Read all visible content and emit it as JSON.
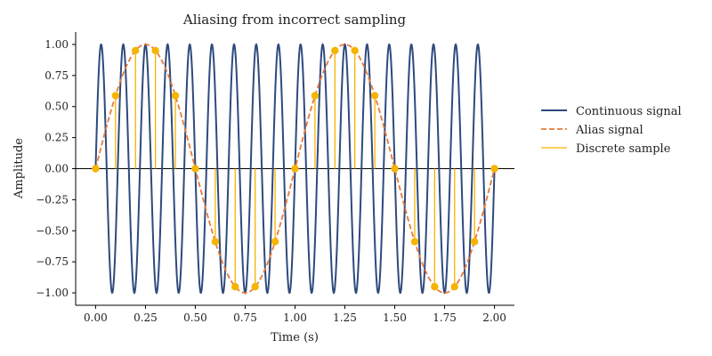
{
  "chart_data": {
    "type": "line",
    "title": "Aliasing from incorrect sampling",
    "xlabel": "Time (s)",
    "ylabel": "Amplitude",
    "xlim": [
      -0.1,
      2.1
    ],
    "ylim": [
      -1.1,
      1.1
    ],
    "xticks": [
      0.0,
      0.25,
      0.5,
      0.75,
      1.0,
      1.25,
      1.5,
      1.75,
      2.0
    ],
    "xtick_labels": [
      "0.00",
      "0.25",
      "0.50",
      "0.75",
      "1.00",
      "1.25",
      "1.50",
      "1.75",
      "2.00"
    ],
    "yticks": [
      -1.0,
      -0.75,
      -0.5,
      -0.25,
      0.0,
      0.25,
      0.5,
      0.75,
      1.0
    ],
    "ytick_labels": [
      "−1.00",
      "−0.75",
      "−0.50",
      "−0.25",
      "0.00",
      "0.25",
      "0.50",
      "0.75",
      "1.00"
    ],
    "grid": false,
    "legend_position": "right",
    "series": [
      {
        "name": "Continuous signal",
        "style": "solid",
        "color": "#2e4a7d",
        "frequency_hz": 9,
        "amplitude": 1
      },
      {
        "name": "Alias signal",
        "style": "dashed",
        "color": "#e8793a",
        "frequency_hz": 1,
        "amplitude": 1
      },
      {
        "name": "Discrete sample",
        "style": "stem",
        "color": "#f5b400",
        "x": [
          0.0,
          0.1,
          0.2,
          0.3,
          0.4,
          0.5,
          0.6,
          0.7,
          0.8,
          0.9,
          1.0,
          1.1,
          1.2,
          1.3,
          1.4,
          1.5,
          1.6,
          1.7,
          1.8,
          1.9,
          2.0
        ],
        "y": [
          0.0,
          0.588,
          0.951,
          0.951,
          0.588,
          0.0,
          -0.588,
          -0.951,
          -0.951,
          -0.588,
          0.0,
          0.588,
          0.951,
          0.951,
          0.588,
          0.0,
          -0.588,
          -0.951,
          -0.951,
          -0.588,
          0.0
        ]
      }
    ]
  }
}
